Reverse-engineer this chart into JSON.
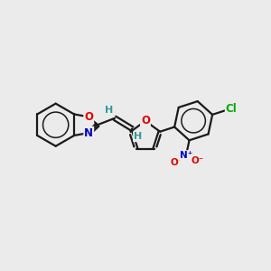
{
  "background_color": "#ebebeb",
  "bond_color": "#1a1a1a",
  "bond_width": 1.6,
  "atom_colors": {
    "O": "#e00000",
    "N": "#0000cc",
    "Cl": "#00aa00",
    "H": "#339999",
    "C": "#1a1a1a"
  },
  "font_size_atoms": 8.5,
  "font_size_H": 8.0,
  "figsize": [
    3.0,
    3.0
  ],
  "dpi": 100
}
